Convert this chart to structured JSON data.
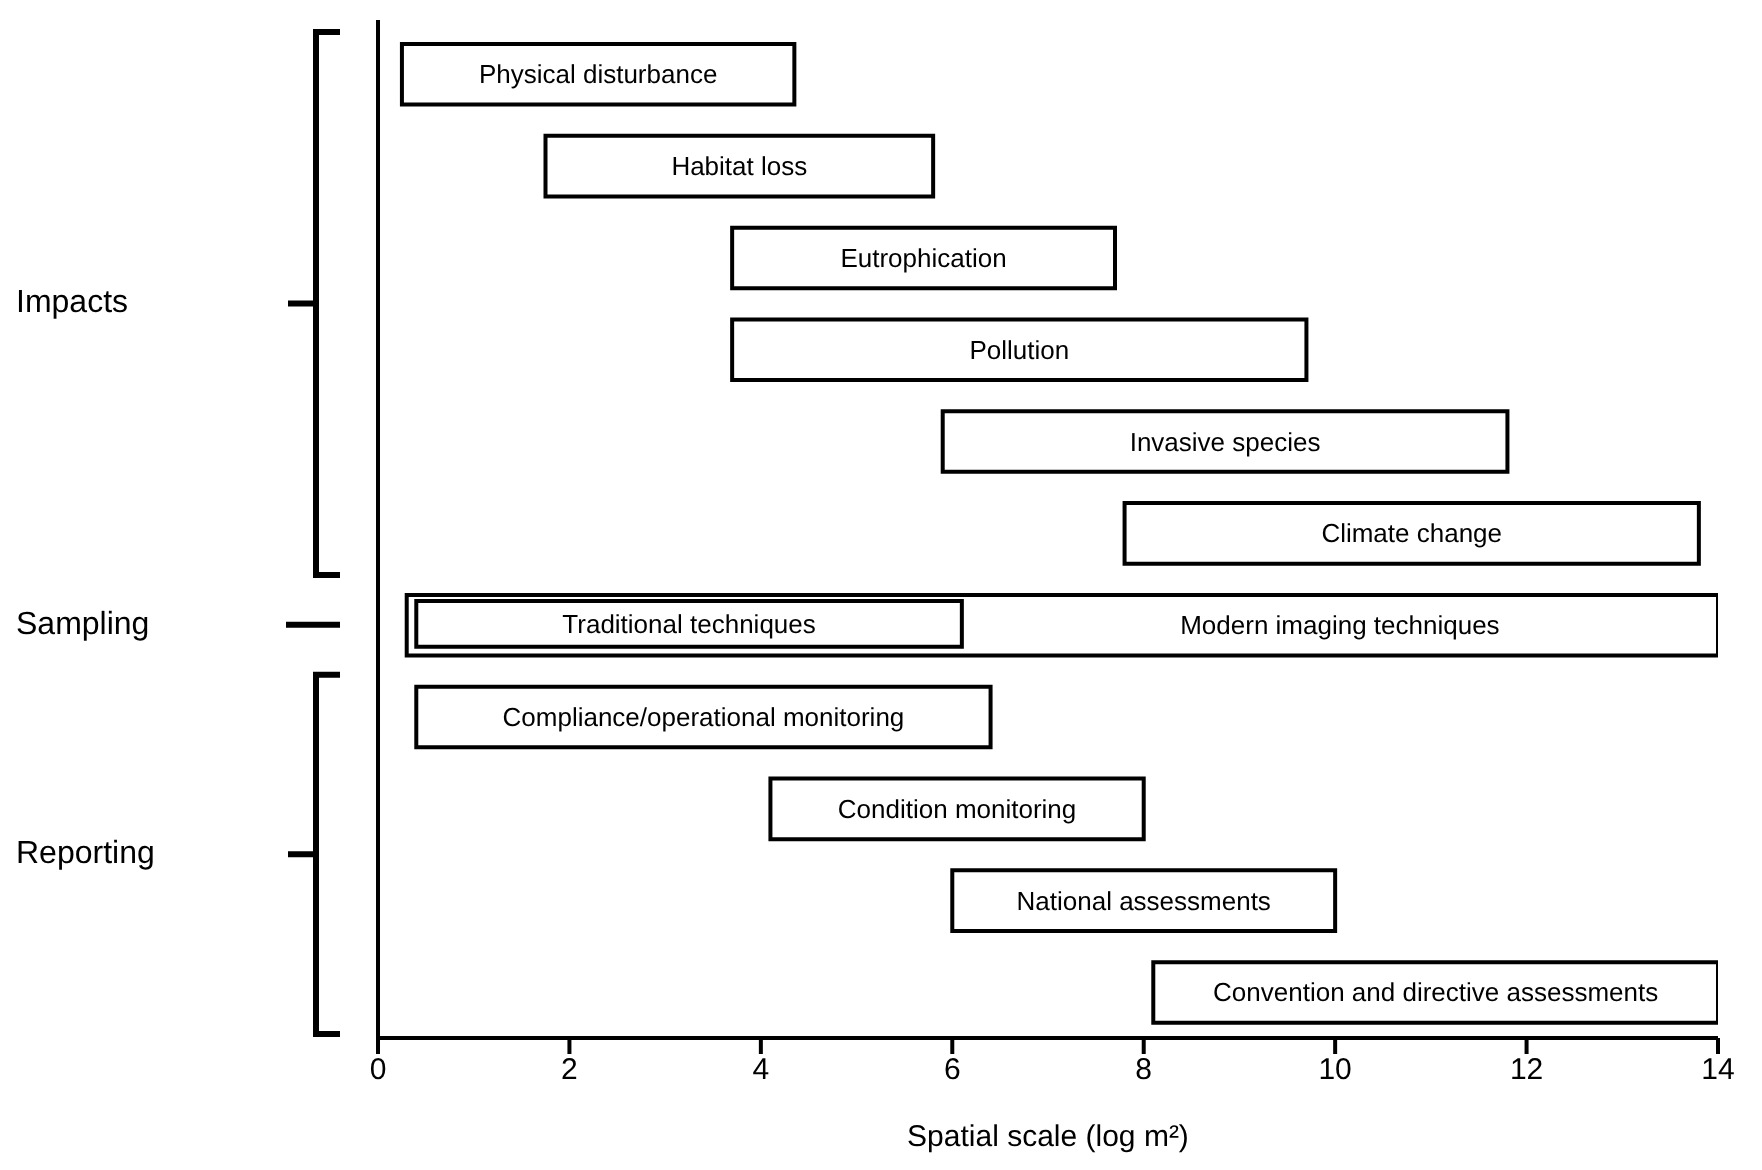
{
  "chart_data": {
    "type": "bar",
    "orientation": "horizontal",
    "xlabel": "Spatial scale (log m²)",
    "categories": [
      "Physical disturbance",
      "Habitat loss",
      "Eutrophication",
      "Pollution",
      "Invasive species",
      "Climate change",
      "Modern imaging techniques",
      "Compliance/operational monitoring",
      "Condition monitoring",
      "National assessments",
      "Convention and directive assessments"
    ],
    "series": [
      {
        "color": "#ffffff",
        "base": [
          0.25,
          1.75,
          3.7,
          3.7,
          5.9,
          7.8,
          0.3,
          0.4,
          4.1,
          6.0,
          8.1
        ],
        "values": [
          4.1,
          4.05,
          4.0,
          6.0,
          5.9,
          6.0,
          13.7,
          6.0,
          3.9,
          4.0,
          5.9
        ]
      },
      {
        "color": "#ffffff",
        "base": [
          null,
          null,
          null,
          null,
          null,
          null,
          0.4,
          null,
          null,
          null,
          null
        ],
        "values": [
          null,
          null,
          null,
          null,
          null,
          null,
          5.7,
          null,
          null,
          null,
          null
        ],
        "value_labels": [
          null,
          null,
          null,
          null,
          null,
          null,
          "Traditional techniques",
          null,
          null,
          null,
          null
        ]
      }
    ],
    "xlim": [
      0,
      14
    ],
    "xticks": [
      0,
      2,
      4,
      6,
      8,
      10,
      12,
      14
    ],
    "annotations": [
      "Impacts",
      "Sampling",
      "Reporting"
    ]
  }
}
